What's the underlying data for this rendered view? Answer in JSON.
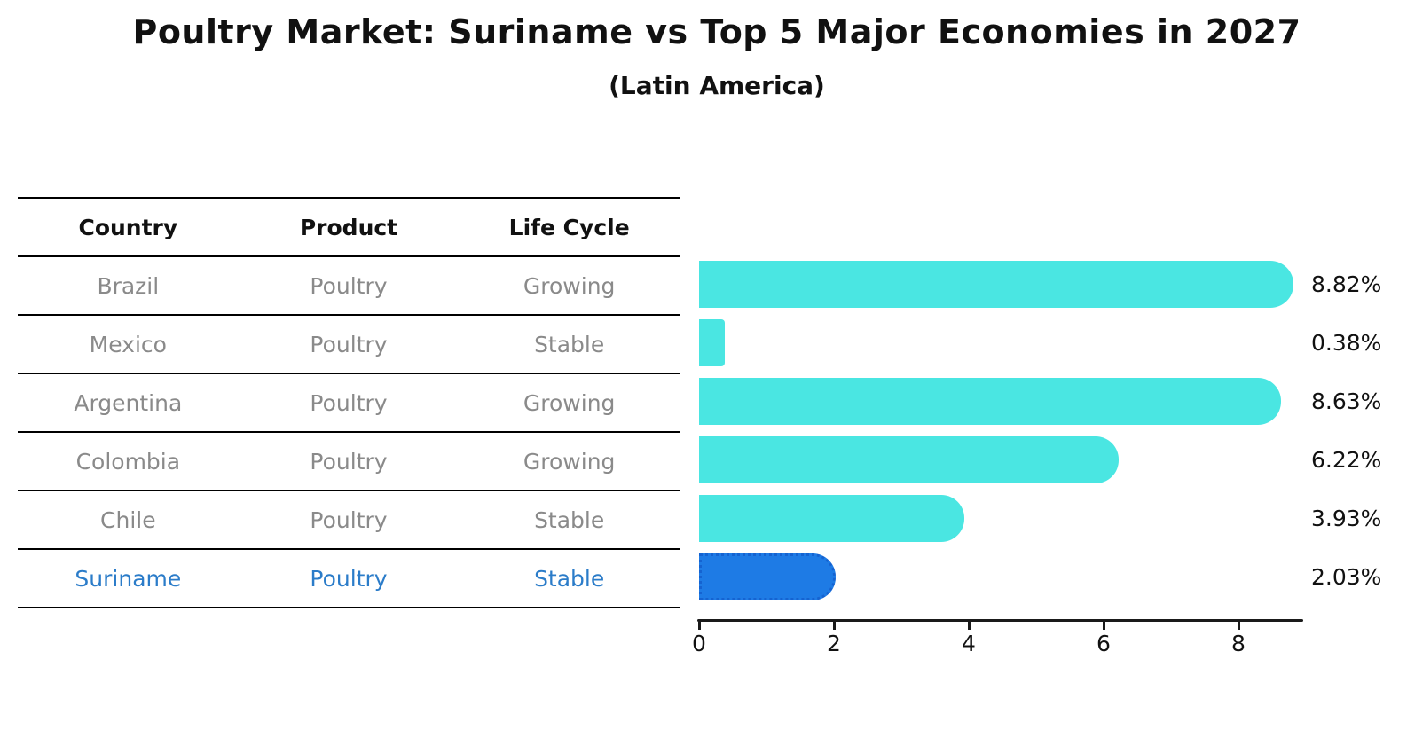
{
  "title": "Poultry Market: Suriname vs Top 5 Major Economies in 2027",
  "subtitle": "(Latin America)",
  "colors": {
    "bar": "#4ae6e2",
    "highlight_bar": "#1e7be5",
    "highlight_bar_border": "#1563d1",
    "highlight_text": "#2b7cc9",
    "row_text": "#8a8a8a",
    "axis": "#1a1a1a"
  },
  "table": {
    "columns": [
      "Country",
      "Product",
      "Life Cycle"
    ],
    "rows": [
      {
        "country": "Brazil",
        "product": "Poultry",
        "life_cycle": "Growing",
        "highlight": false
      },
      {
        "country": "Mexico",
        "product": "Poultry",
        "life_cycle": "Stable",
        "highlight": false
      },
      {
        "country": "Argentina",
        "product": "Poultry",
        "life_cycle": "Growing",
        "highlight": false
      },
      {
        "country": "Colombia",
        "product": "Poultry",
        "life_cycle": "Growing",
        "highlight": false
      },
      {
        "country": "Chile",
        "product": "Poultry",
        "life_cycle": "Stable",
        "highlight": false
      },
      {
        "country": "Suriname",
        "product": "Poultry",
        "life_cycle": "Stable",
        "highlight": true
      }
    ]
  },
  "chart_data": {
    "type": "bar",
    "orientation": "horizontal",
    "title": "Poultry Market: Suriname vs Top 5 Major Economies in 2027",
    "subtitle": "(Latin America)",
    "categories": [
      "Brazil",
      "Mexico",
      "Argentina",
      "Colombia",
      "Chile",
      "Suriname"
    ],
    "values": [
      8.82,
      0.38,
      8.63,
      6.22,
      3.93,
      2.03
    ],
    "value_labels": [
      "8.82%",
      "0.38%",
      "8.63%",
      "6.22%",
      "3.93%",
      "2.03%"
    ],
    "highlight_index": 5,
    "xlabel": "",
    "ylabel": "",
    "xlim": [
      0,
      9.1
    ],
    "xticks": [
      0,
      2,
      4,
      6,
      8
    ],
    "grid": false,
    "legend": false
  }
}
